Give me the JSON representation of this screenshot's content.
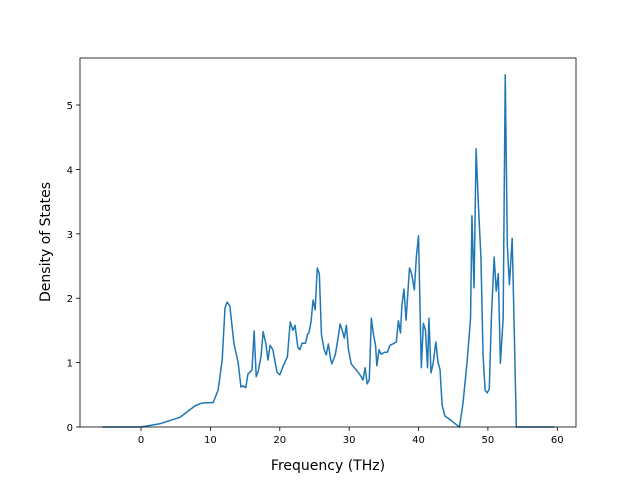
{
  "chart_data": {
    "type": "line",
    "xlabel": "Frequency (THz)",
    "ylabel": "Density of States",
    "xlim": [
      -8.8,
      62.7
    ],
    "ylim": [
      0,
      5.73
    ],
    "xticks": [
      0,
      10,
      20,
      30,
      40,
      50,
      60
    ],
    "yticks": [
      0,
      1,
      2,
      3,
      4,
      5
    ],
    "series": [
      {
        "color": "#1f77b4",
        "x": [
          -5.6,
          0,
          2.7,
          5.6,
          7.8,
          8.7,
          10.4,
          11.1,
          11.7,
          12.1,
          12.4,
          12.8,
          13.4,
          14.0,
          14.4,
          14.7,
          15.1,
          15.4,
          16.0,
          16.3,
          16.6,
          16.9,
          17.3,
          17.6,
          18.0,
          18.3,
          18.6,
          19.0,
          19.6,
          20.0,
          20.5,
          21.1,
          21.5,
          21.9,
          22.2,
          22.6,
          22.9,
          23.2,
          23.7,
          24.0,
          24.2,
          24.5,
          24.8,
          25.1,
          25.4,
          25.7,
          26.0,
          26.4,
          26.7,
          27.0,
          27.3,
          27.5,
          28.0,
          28.4,
          28.7,
          29.0,
          29.3,
          29.6,
          29.9,
          30.3,
          30.9,
          31.3,
          31.7,
          32.0,
          32.3,
          32.6,
          32.9,
          33.2,
          33.5,
          33.8,
          34.0,
          34.3,
          34.6,
          35.1,
          35.5,
          35.9,
          36.3,
          36.8,
          37.1,
          37.4,
          37.6,
          37.9,
          38.2,
          38.7,
          39.0,
          39.4,
          39.7,
          40.0,
          40.4,
          40.7,
          41.0,
          41.3,
          41.5,
          41.8,
          42.1,
          42.5,
          42.8,
          43.1,
          43.4,
          43.8,
          44.6,
          45.3,
          45.9,
          46.4,
          47.0,
          47.5,
          47.7,
          48.0,
          48.3,
          48.6,
          49.0,
          49.3,
          49.6,
          49.9,
          50.2,
          50.5,
          50.9,
          51.2,
          51.5,
          51.8,
          52.2,
          52.5,
          52.8,
          53.1,
          53.5,
          53.8,
          54.1,
          59.6
        ],
        "values": [
          0,
          0,
          0.05,
          0.15,
          0.33,
          0.37,
          0.38,
          0.57,
          1.04,
          1.85,
          1.94,
          1.88,
          1.29,
          1.0,
          0.62,
          0.64,
          0.61,
          0.82,
          0.89,
          1.49,
          0.78,
          0.87,
          1.1,
          1.48,
          1.29,
          1.04,
          1.27,
          1.2,
          0.85,
          0.81,
          0.95,
          1.09,
          1.63,
          1.5,
          1.58,
          1.24,
          1.2,
          1.3,
          1.3,
          1.44,
          1.46,
          1.63,
          1.97,
          1.82,
          2.47,
          2.38,
          1.44,
          1.2,
          1.12,
          1.29,
          1.07,
          0.98,
          1.12,
          1.38,
          1.6,
          1.5,
          1.38,
          1.58,
          1.2,
          0.98,
          0.9,
          0.85,
          0.79,
          0.73,
          0.92,
          0.67,
          0.73,
          1.69,
          1.44,
          1.27,
          0.95,
          1.2,
          1.13,
          1.16,
          1.16,
          1.27,
          1.29,
          1.32,
          1.65,
          1.46,
          1.89,
          2.14,
          1.66,
          2.47,
          2.38,
          2.13,
          2.66,
          2.97,
          0.92,
          1.61,
          1.5,
          0.92,
          1.69,
          0.84,
          0.98,
          1.32,
          1.01,
          0.89,
          0.34,
          0.17,
          0.11,
          0.05,
          0,
          0.36,
          1.01,
          1.69,
          3.28,
          2.16,
          4.32,
          3.52,
          2.62,
          1.12,
          0.57,
          0.53,
          0.59,
          1.69,
          2.64,
          2.11,
          2.38,
          0.99,
          1.69,
          5.47,
          2.83,
          2.21,
          2.93,
          1.5,
          0,
          0
        ]
      }
    ]
  }
}
